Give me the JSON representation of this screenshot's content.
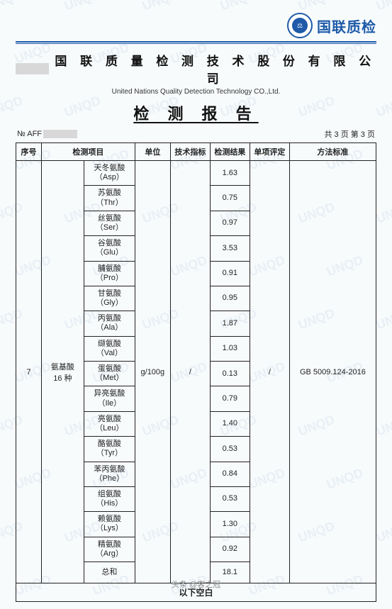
{
  "brand": {
    "badge_text": "⚖",
    "logo_text": "国联质检",
    "watermark": "UNQD"
  },
  "company": {
    "cn": "国 联 质 量 检 测 技 术 股 份 有 限 公 司",
    "en": "United Nations Quality Detection Technology CO.,Ltd."
  },
  "report_title": "检 测 报 告",
  "meta": {
    "no_prefix": "№ AFF",
    "page_info": "共 3 页  第 3 页"
  },
  "columns": {
    "seq": "序号",
    "item": "检测项目",
    "unit": "单位",
    "spec": "技术指标",
    "result": "检测结果",
    "verdict": "单项评定",
    "method": "方法标准"
  },
  "group": {
    "seq": "7",
    "name": "氨基酸\n16 种",
    "unit": "g/100g",
    "spec": "/",
    "verdict": "/",
    "method": "GB 5009.124-2016"
  },
  "rows": [
    {
      "name": "天冬氨酸\n（Asp）",
      "result": "1.63"
    },
    {
      "name": "苏氨酸\n（Thr）",
      "result": "0.75"
    },
    {
      "name": "丝氨酸\n（Ser）",
      "result": "0.97"
    },
    {
      "name": "谷氨酸\n（Glu）",
      "result": "3.53"
    },
    {
      "name": "脯氨酸\n（Pro）",
      "result": "0.91"
    },
    {
      "name": "甘氨酸\n（Gly）",
      "result": "0.95"
    },
    {
      "name": "丙氨酸\n（Ala）",
      "result": "1.87"
    },
    {
      "name": "缬氨酸\n（Val）",
      "result": "1.03"
    },
    {
      "name": "蛋氨酸\n（Met）",
      "result": "0.13"
    },
    {
      "name": "异亮氨酸\n（Ile）",
      "result": "0.79"
    },
    {
      "name": "亮氨酸\n（Leu）",
      "result": "1.40"
    },
    {
      "name": "酪氨酸\n（Tyr）",
      "result": "0.53"
    },
    {
      "name": "苯丙氨酸\n（Phe）",
      "result": "0.84"
    },
    {
      "name": "组氨酸\n（His）",
      "result": "0.53"
    },
    {
      "name": "赖氨酸\n（Lys）",
      "result": "1.30"
    },
    {
      "name": "精氨酸\n（Arg）",
      "result": "0.92"
    },
    {
      "name": "总和",
      "result": "18.1"
    }
  ],
  "footer_blank": "以下空白",
  "toutiao": "头条 @客之冠",
  "style": {
    "brand_color": "#1e5aa8",
    "border_color": "#222222",
    "background": "#f8fbfc",
    "watermark_color": "#3a6fa8",
    "title_fontsize": 22,
    "body_fontsize": 11
  }
}
